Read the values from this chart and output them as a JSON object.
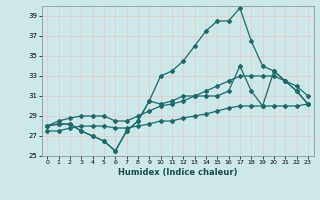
{
  "xlabel": "Humidex (Indice chaleur)",
  "bg_color": "#cde8e8",
  "grid_color": "#b0d0d0",
  "line_color": "#1a6b6b",
  "xlim": [
    -0.5,
    23.5
  ],
  "ylim": [
    25,
    40
  ],
  "yticks": [
    25,
    27,
    29,
    31,
    33,
    35,
    37,
    39
  ],
  "xticks": [
    0,
    1,
    2,
    3,
    4,
    5,
    6,
    7,
    8,
    9,
    10,
    11,
    12,
    13,
    14,
    15,
    16,
    17,
    18,
    19,
    20,
    21,
    22,
    23
  ],
  "series1_x": [
    0,
    1,
    2,
    3,
    4,
    5,
    6,
    7,
    8,
    9,
    10,
    11,
    12,
    13,
    14,
    15,
    16,
    17,
    18,
    19,
    20,
    21,
    22,
    23
  ],
  "series1_y": [
    28.0,
    28.2,
    28.2,
    27.5,
    27.0,
    26.5,
    25.5,
    27.5,
    28.5,
    30.5,
    33.0,
    33.5,
    34.5,
    36.0,
    37.5,
    38.5,
    38.5,
    39.8,
    36.5,
    34.0,
    33.5,
    32.5,
    31.5,
    30.2
  ],
  "series2_x": [
    0,
    1,
    2,
    3,
    4,
    5,
    6,
    7,
    8,
    9,
    10,
    11,
    12,
    13,
    14,
    15,
    16,
    17,
    18,
    19,
    20,
    21,
    22,
    23
  ],
  "series2_y": [
    28.0,
    28.2,
    28.2,
    27.5,
    27.0,
    26.5,
    25.5,
    27.5,
    28.5,
    30.5,
    30.2,
    30.5,
    31.0,
    31.0,
    31.0,
    31.0,
    31.5,
    34.0,
    31.5,
    30.0,
    33.5,
    32.5,
    31.5,
    30.2
  ],
  "series3_x": [
    0,
    1,
    2,
    3,
    4,
    5,
    6,
    7,
    8,
    9,
    10,
    11,
    12,
    13,
    14,
    15,
    16,
    17,
    18,
    19,
    20,
    21,
    22,
    23
  ],
  "series3_y": [
    28.0,
    28.5,
    28.8,
    29.0,
    29.0,
    29.0,
    28.5,
    28.5,
    29.0,
    29.5,
    30.0,
    30.2,
    30.5,
    31.0,
    31.5,
    32.0,
    32.5,
    33.0,
    33.0,
    33.0,
    33.0,
    32.5,
    32.0,
    31.0
  ],
  "series4_x": [
    0,
    1,
    2,
    3,
    4,
    5,
    6,
    7,
    8,
    9,
    10,
    11,
    12,
    13,
    14,
    15,
    16,
    17,
    18,
    19,
    20,
    21,
    22,
    23
  ],
  "series4_y": [
    27.5,
    27.5,
    27.8,
    28.0,
    28.0,
    28.0,
    27.8,
    27.8,
    28.0,
    28.2,
    28.5,
    28.5,
    28.8,
    29.0,
    29.2,
    29.5,
    29.8,
    30.0,
    30.0,
    30.0,
    30.0,
    30.0,
    30.0,
    30.2
  ]
}
